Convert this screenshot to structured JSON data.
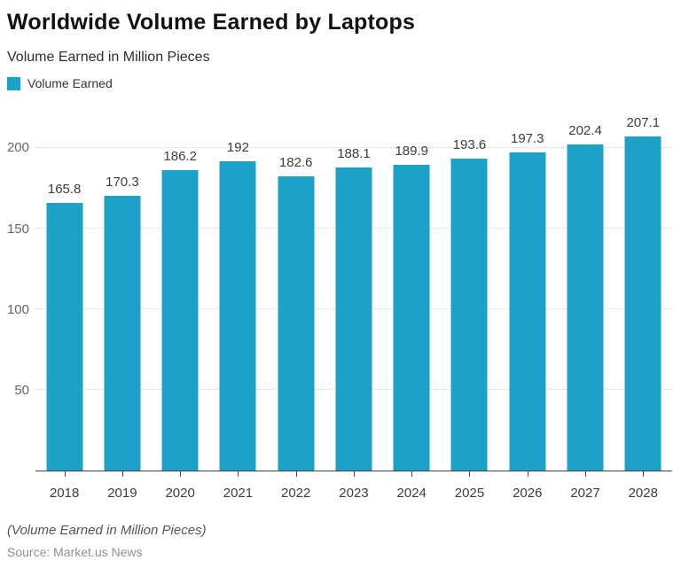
{
  "header": {
    "title": "Worldwide Volume Earned by Laptops",
    "subtitle": "Volume Earned in Million Pieces"
  },
  "legend": {
    "label": "Volume Earned",
    "color": "#1ea1c9"
  },
  "chart_data": {
    "type": "bar",
    "title": "Worldwide Volume Earned by Laptops",
    "categories": [
      "2018",
      "2019",
      "2020",
      "2021",
      "2022",
      "2023",
      "2024",
      "2025",
      "2026",
      "2027",
      "2028"
    ],
    "values": [
      165.8,
      170.3,
      186.2,
      192,
      182.6,
      188.1,
      189.9,
      193.6,
      197.3,
      202.4,
      207.1
    ],
    "value_labels": [
      "165.8",
      "170.3",
      "186.2",
      "192",
      "182.6",
      "188.1",
      "189.9",
      "193.6",
      "197.3",
      "202.4",
      "207.1"
    ],
    "series_name": "Volume Earned",
    "xlabel": "",
    "ylabel": "Volume Earned in Million Pieces",
    "yticks": [
      50,
      100,
      150,
      200
    ],
    "ylim": [
      0,
      215
    ],
    "grid": true,
    "grid_style": "dotted",
    "legend_position": "top-left",
    "bar_color": "#1ea1c9"
  },
  "footer": {
    "note": "(Volume Earned in Million Pieces)",
    "source": "Source: Market.us News"
  }
}
